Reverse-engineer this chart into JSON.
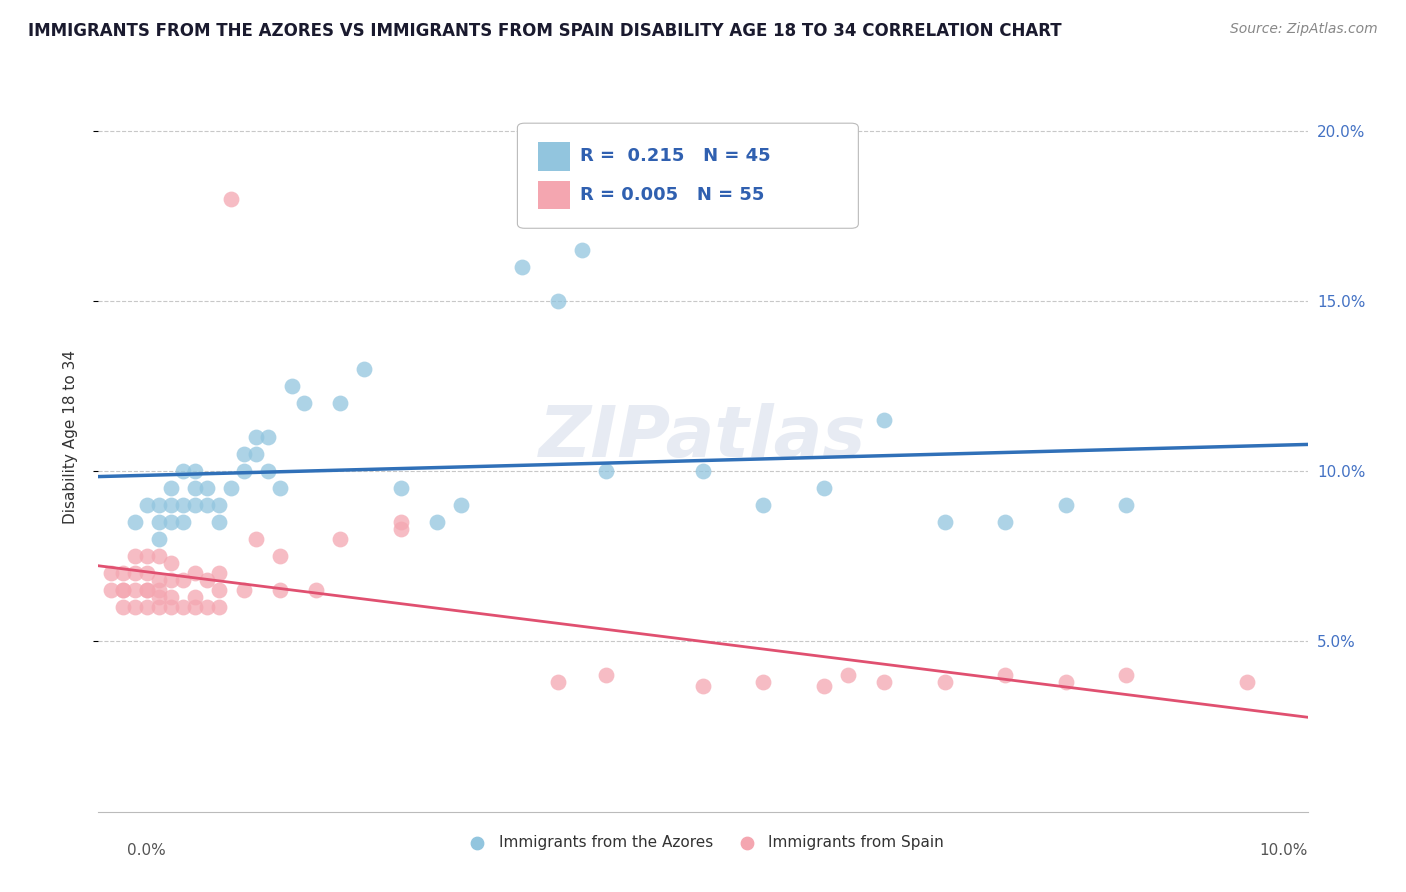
{
  "title": "IMMIGRANTS FROM THE AZORES VS IMMIGRANTS FROM SPAIN DISABILITY AGE 18 TO 34 CORRELATION CHART",
  "source": "Source: ZipAtlas.com",
  "ylabel": "Disability Age 18 to 34",
  "xlim": [
    0.0,
    0.1
  ],
  "ylim": [
    0.0,
    0.22
  ],
  "yticks": [
    0.05,
    0.1,
    0.15,
    0.2
  ],
  "ytick_labels": [
    "5.0%",
    "10.0%",
    "15.0%",
    "20.0%"
  ],
  "legend_blue_R": 0.215,
  "legend_blue_N": 45,
  "legend_pink_R": 0.005,
  "legend_pink_N": 55,
  "watermark": "ZIPatlas",
  "bg_color": "#ffffff",
  "grid_color": "#c8c8c8",
  "blue_color": "#92c5de",
  "pink_color": "#f4a6b0",
  "line_blue_color": "#3070b8",
  "line_pink_color": "#e05070",
  "blue_scatter_x": [
    0.003,
    0.004,
    0.005,
    0.005,
    0.005,
    0.006,
    0.006,
    0.006,
    0.007,
    0.007,
    0.007,
    0.008,
    0.008,
    0.008,
    0.009,
    0.009,
    0.01,
    0.01,
    0.011,
    0.012,
    0.012,
    0.013,
    0.013,
    0.014,
    0.014,
    0.015,
    0.016,
    0.017,
    0.02,
    0.022,
    0.025,
    0.028,
    0.03,
    0.035,
    0.038,
    0.04,
    0.042,
    0.05,
    0.055,
    0.06,
    0.065,
    0.07,
    0.075,
    0.08,
    0.085
  ],
  "blue_scatter_y": [
    0.085,
    0.09,
    0.08,
    0.085,
    0.09,
    0.085,
    0.09,
    0.095,
    0.085,
    0.09,
    0.1,
    0.09,
    0.095,
    0.1,
    0.09,
    0.095,
    0.085,
    0.09,
    0.095,
    0.1,
    0.105,
    0.105,
    0.11,
    0.1,
    0.11,
    0.095,
    0.125,
    0.12,
    0.12,
    0.13,
    0.095,
    0.085,
    0.09,
    0.16,
    0.15,
    0.165,
    0.1,
    0.1,
    0.09,
    0.095,
    0.115,
    0.085,
    0.085,
    0.09,
    0.09
  ],
  "pink_scatter_x": [
    0.001,
    0.001,
    0.002,
    0.002,
    0.002,
    0.002,
    0.003,
    0.003,
    0.003,
    0.003,
    0.004,
    0.004,
    0.004,
    0.004,
    0.004,
    0.005,
    0.005,
    0.005,
    0.005,
    0.005,
    0.006,
    0.006,
    0.006,
    0.006,
    0.007,
    0.007,
    0.008,
    0.008,
    0.008,
    0.009,
    0.009,
    0.01,
    0.01,
    0.01,
    0.011,
    0.012,
    0.013,
    0.015,
    0.015,
    0.018,
    0.02,
    0.025,
    0.025,
    0.038,
    0.042,
    0.05,
    0.055,
    0.06,
    0.062,
    0.065,
    0.07,
    0.075,
    0.08,
    0.085,
    0.095
  ],
  "pink_scatter_y": [
    0.065,
    0.07,
    0.06,
    0.065,
    0.065,
    0.07,
    0.06,
    0.065,
    0.07,
    0.075,
    0.06,
    0.065,
    0.065,
    0.07,
    0.075,
    0.06,
    0.063,
    0.065,
    0.068,
    0.075,
    0.06,
    0.063,
    0.068,
    0.073,
    0.06,
    0.068,
    0.06,
    0.063,
    0.07,
    0.06,
    0.068,
    0.06,
    0.065,
    0.07,
    0.18,
    0.065,
    0.08,
    0.065,
    0.075,
    0.065,
    0.08,
    0.083,
    0.085,
    0.038,
    0.04,
    0.037,
    0.038,
    0.037,
    0.04,
    0.038,
    0.038,
    0.04,
    0.038,
    0.04,
    0.038
  ],
  "title_fontsize": 12,
  "source_fontsize": 10,
  "axis_fontsize": 11,
  "tick_fontsize": 11
}
